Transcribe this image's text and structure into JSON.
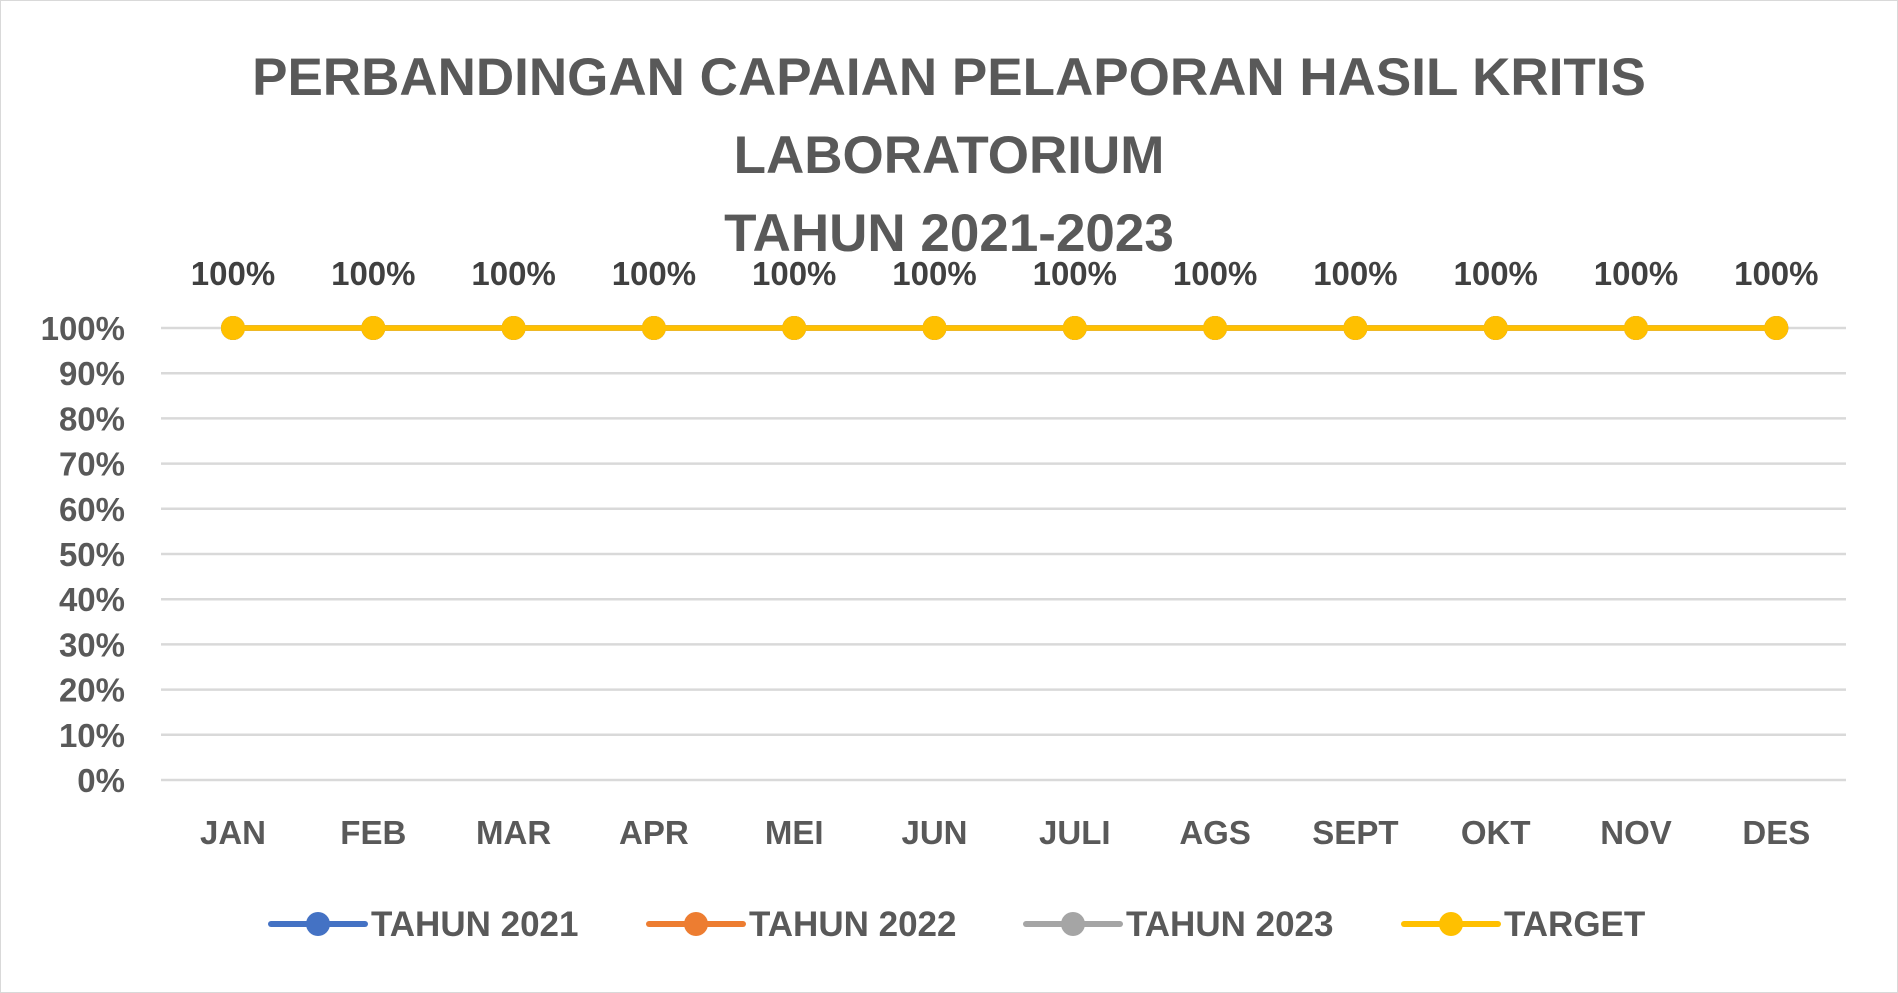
{
  "chart_data": {
    "type": "line",
    "title": [
      "PERBANDINGAN CAPAIAN  PELAPORAN HASIL  KRITIS",
      "LABORATORIUM",
      "TAHUN 2021-2023"
    ],
    "categories": [
      "JAN",
      "FEB",
      "MAR",
      "APR",
      "MEI",
      "JUN",
      "JULI",
      "AGS",
      "SEPT",
      "OKT",
      "NOV",
      "DES"
    ],
    "y_ticks": [
      "0%",
      "10%",
      "20%",
      "30%",
      "40%",
      "50%",
      "60%",
      "70%",
      "80%",
      "90%",
      "100%"
    ],
    "ylim": [
      0,
      100
    ],
    "grid": true,
    "legend_position": "bottom",
    "series": [
      {
        "name": "TAHUN 2021",
        "color": "#4472C4",
        "values": [
          100,
          100,
          100,
          100,
          100,
          100,
          100,
          100,
          100,
          100,
          100,
          100
        ]
      },
      {
        "name": "TAHUN 2022",
        "color": "#ED7D31",
        "values": [
          100,
          100,
          100,
          100,
          100,
          100,
          100,
          100,
          100,
          100,
          100,
          100
        ]
      },
      {
        "name": "TAHUN 2023",
        "color": "#A5A5A5",
        "values": [
          100,
          100,
          100,
          100,
          100,
          100,
          100,
          100,
          100,
          100,
          100,
          100
        ]
      },
      {
        "name": "TARGET",
        "color": "#FFC000",
        "values": [
          100,
          100,
          100,
          100,
          100,
          100,
          100,
          100,
          100,
          100,
          100,
          100
        ]
      }
    ],
    "data_labels": [
      "100%",
      "100%",
      "100%",
      "100%",
      "100%",
      "100%",
      "100%",
      "100%",
      "100%",
      "100%",
      "100%",
      "100%"
    ]
  }
}
